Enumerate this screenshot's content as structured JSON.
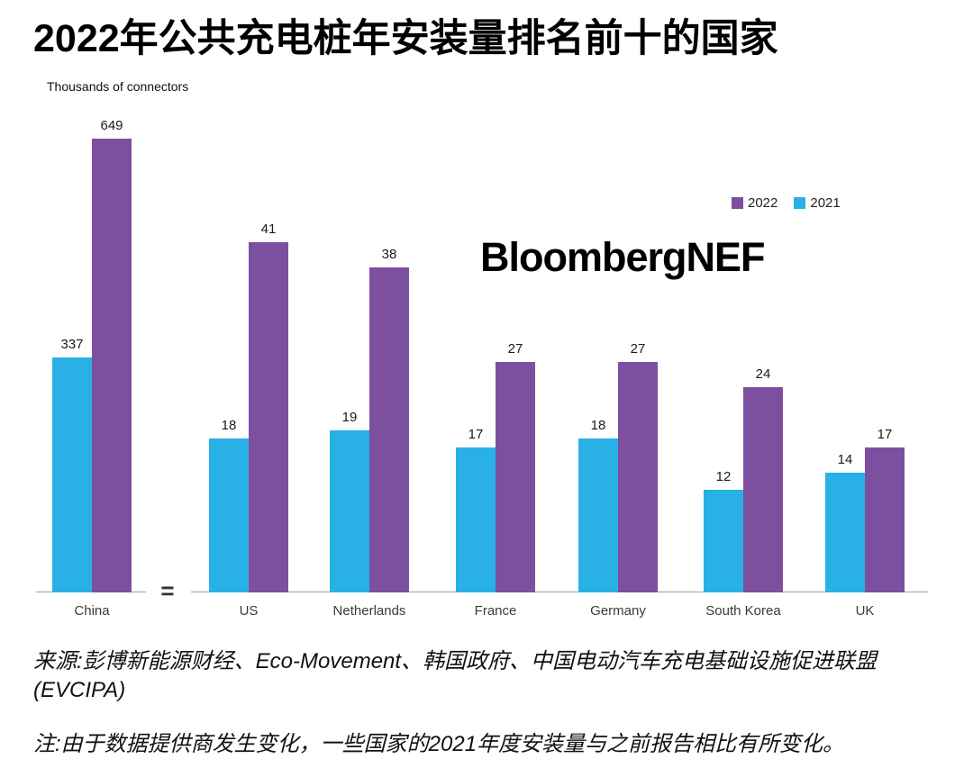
{
  "page": {
    "title": "2022年公共充电桩年安装量排名前十的国家",
    "units_label": "Thousands of connectors",
    "watermark": "BloombergNEF",
    "axis_break_symbol": "=",
    "source_line": "来源:彭博新能源财经、Eco-Movement、韩国政府、中国电动汽车充电基础设施促进联盟(EVCIPA)",
    "note_line": "注:由于数据提供商发生变化，一些国家的2021年度安装量与之前报告相比有所变化。"
  },
  "legend": {
    "items": [
      {
        "label": "2022",
        "color": "#7d509f"
      },
      {
        "label": "2021",
        "color": "#29b1e6"
      }
    ]
  },
  "chart_data": {
    "type": "bar",
    "title": "2022年公共充电桩年安装量排名前十的国家",
    "ylabel": "Thousands of connectors",
    "categories": [
      "China",
      "US",
      "Netherlands",
      "France",
      "Germany",
      "South Korea",
      "UK"
    ],
    "series": [
      {
        "name": "2021",
        "color": "#29b1e6",
        "values": [
          337,
          18,
          19,
          17,
          18,
          12,
          14
        ]
      },
      {
        "name": "2022",
        "color": "#7d509f",
        "values": [
          649,
          41,
          38,
          27,
          27,
          24,
          17
        ]
      }
    ],
    "value_labels": true,
    "grid": false,
    "legend_position": "top-right",
    "ylim_main": [
      0,
      45
    ],
    "axis_break": "China bars drawn on a separate compressed scale, separated from other countries by an '=' break symbol on the baseline"
  }
}
